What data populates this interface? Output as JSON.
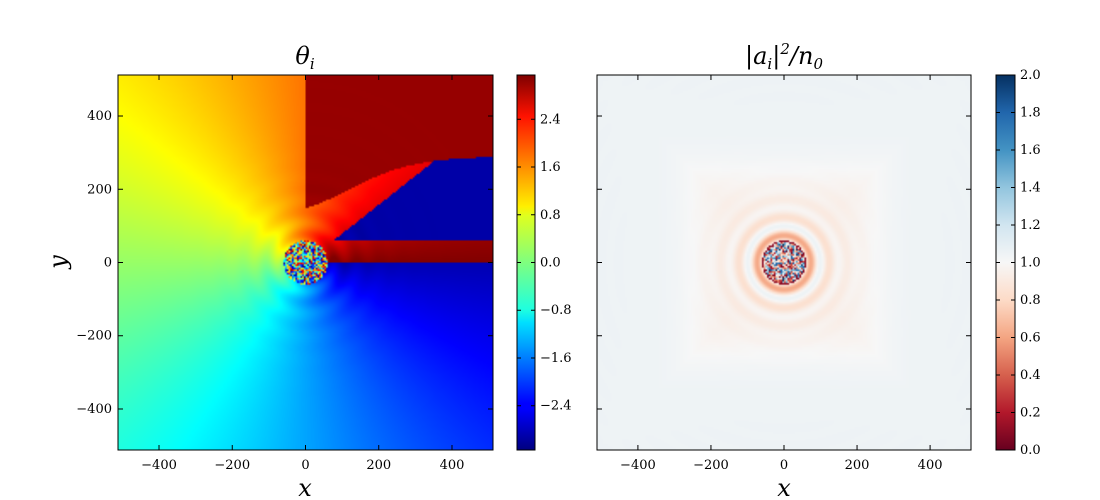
{
  "chart_data": [
    {
      "type": "heatmap",
      "title": "θ_i",
      "title_main": "θ",
      "title_sub": "i",
      "xlabel": "x",
      "ylabel": "y",
      "xlim": [
        -512,
        512
      ],
      "ylim": [
        -512,
        512
      ],
      "xticks": [
        -400,
        -200,
        0,
        200,
        400
      ],
      "yticks": [
        -400,
        -200,
        0,
        200,
        400
      ],
      "xtick_labels": [
        "−400",
        "−200",
        "0",
        "200",
        "400"
      ],
      "ytick_labels": [
        "−400",
        "−200",
        "0",
        "200",
        "400"
      ],
      "colormap": "jet",
      "colorbar": {
        "vmin": -3.14159,
        "vmax": 3.14159,
        "ticks": [
          -2.4,
          -1.6,
          -0.8,
          0.0,
          0.8,
          1.6,
          2.4
        ],
        "tick_labels": [
          "−2.4",
          "−1.6",
          "−0.8",
          "0.0",
          "0.8",
          "1.6",
          "2.4"
        ]
      },
      "features": {
        "vortex_center": [
          0,
          0
        ],
        "core_radius": 60,
        "field": "phase winding around a central vortex with a branch cut toward the upper right"
      }
    },
    {
      "type": "heatmap",
      "title": "|a_i|²/n_0",
      "xlabel": "x",
      "ylabel": "",
      "xlim": [
        -512,
        512
      ],
      "ylim": [
        -512,
        512
      ],
      "xticks": [
        -400,
        -200,
        0,
        200,
        400
      ],
      "yticks": [
        -400,
        -200,
        0,
        200,
        400
      ],
      "xtick_labels": [
        "−400",
        "−200",
        "0",
        "200",
        "400"
      ],
      "colormap": "RdBu",
      "colorbar": {
        "vmin": 0.0,
        "vmax": 2.0,
        "ticks": [
          0.0,
          0.2,
          0.4,
          0.6,
          0.8,
          1.0,
          1.2,
          1.4,
          1.6,
          1.8,
          2.0
        ],
        "tick_labels": [
          "0.0",
          "0.2",
          "0.4",
          "0.6",
          "0.8",
          "1.0",
          "1.2",
          "1.4",
          "1.6",
          "1.8",
          "2.0"
        ]
      },
      "features": {
        "background_value": 1.05,
        "vortex_center": [
          0,
          0
        ],
        "core_radius": 60,
        "ring_radius_range": [
          60,
          150
        ]
      }
    }
  ]
}
